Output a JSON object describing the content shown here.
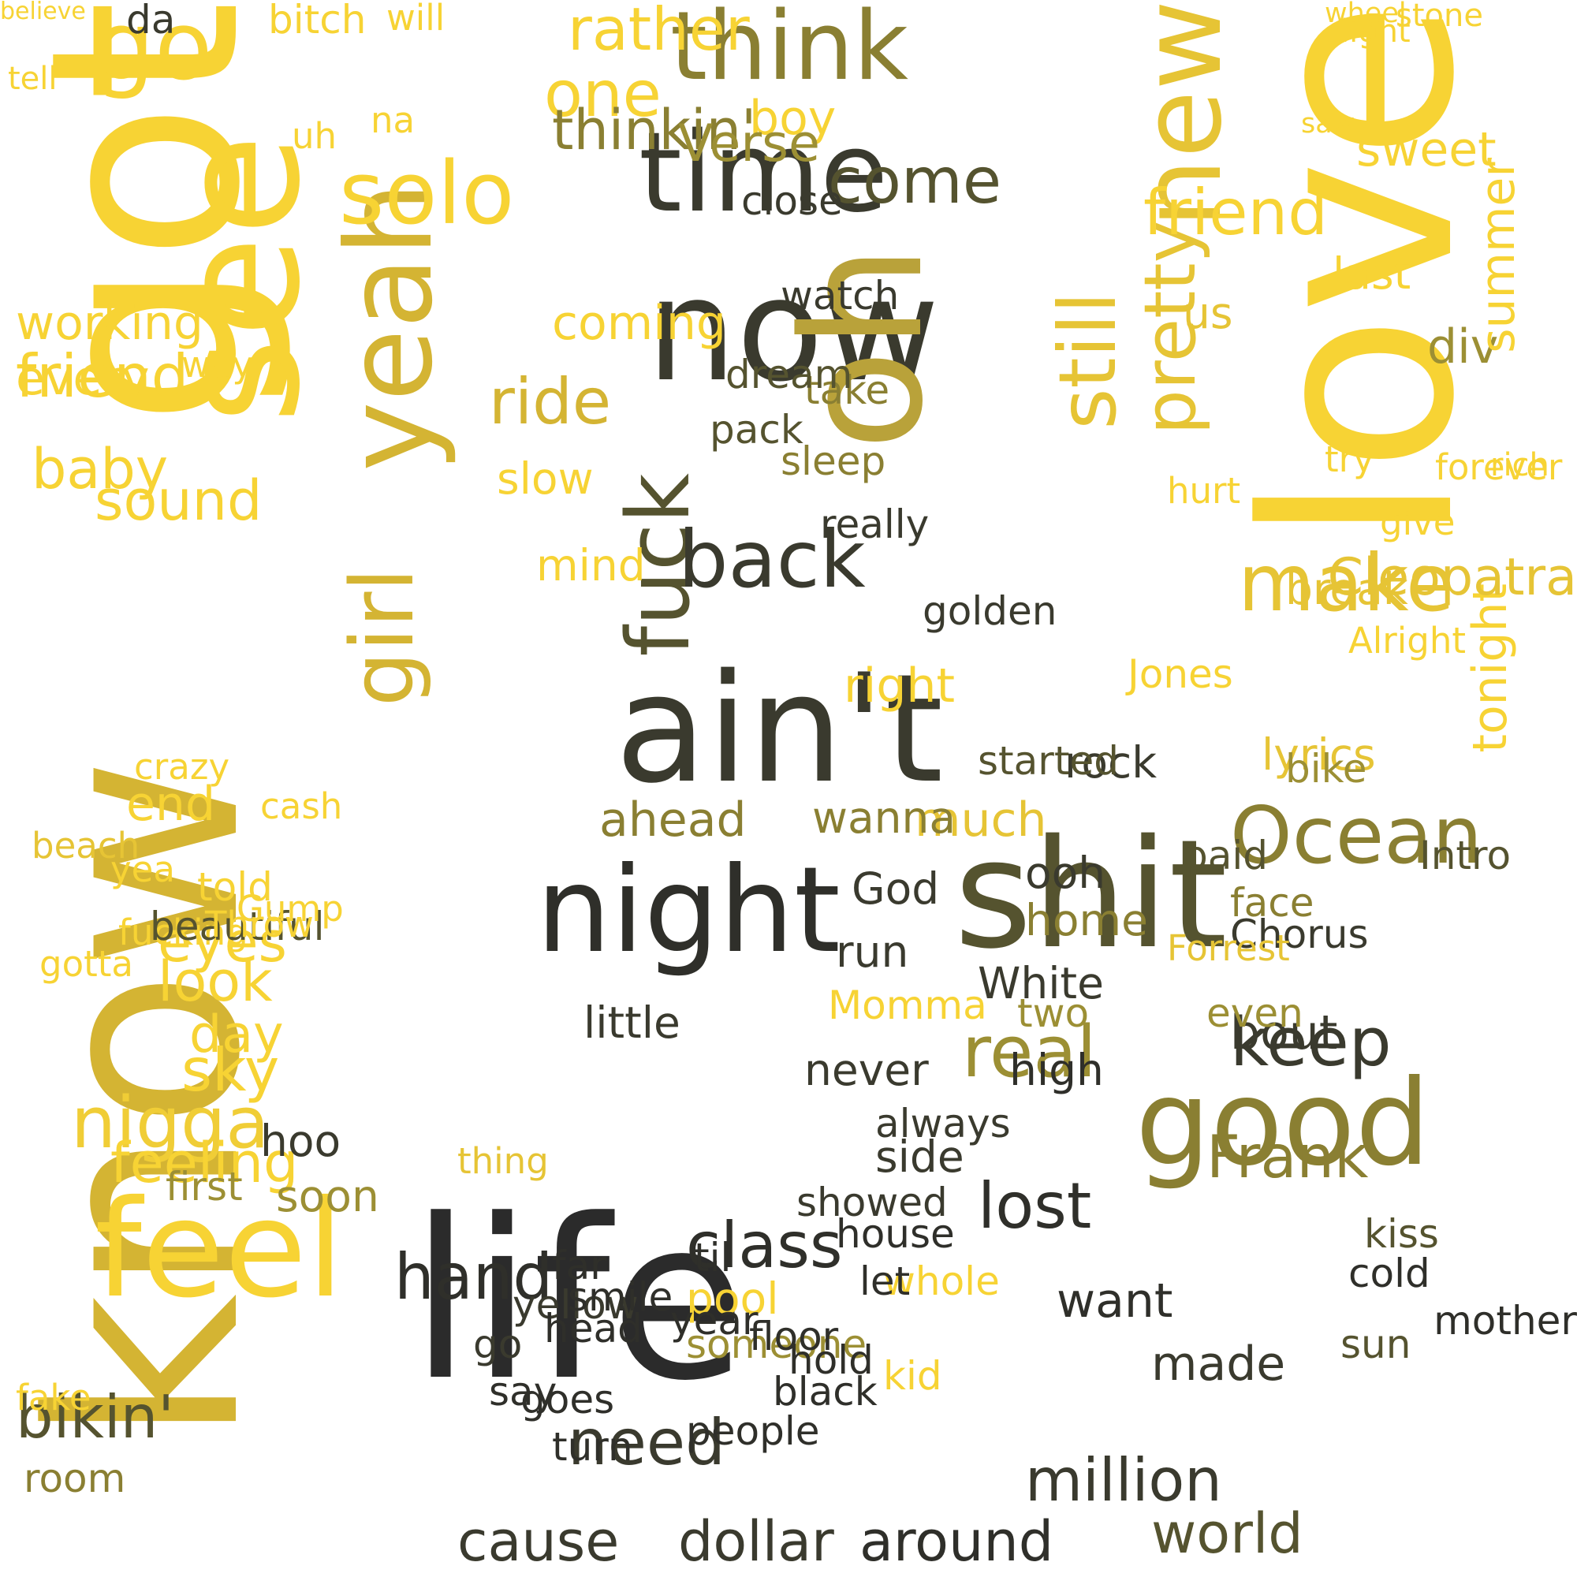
{
  "palette": {
    "yellow": "#f7d334",
    "gold": "#c9b13b",
    "olive": "#8a7f32",
    "dark_olive": "#3f3d2a",
    "near_black": "#2c2c2c"
  },
  "words": [
    {
      "text": "know",
      "color": "#d4b433"
    },
    {
      "text": "got",
      "color": "#f7d334"
    },
    {
      "text": "love",
      "color": "#f7d334"
    },
    {
      "text": "life",
      "color": "#2b2b2b"
    },
    {
      "text": "ain't",
      "color": "#3a3a2e"
    },
    {
      "text": "shit",
      "color": "#55532f"
    },
    {
      "text": "see",
      "color": "#f7d334"
    },
    {
      "text": "now",
      "color": "#3a3a2e"
    },
    {
      "text": "oh",
      "color": "#b9a23a"
    },
    {
      "text": "time",
      "color": "#3a3a2e"
    },
    {
      "text": "night",
      "color": "#2f2f2a"
    },
    {
      "text": "good",
      "color": "#8a7f32"
    },
    {
      "text": "yeah",
      "color": "#d4b433"
    },
    {
      "text": "feel",
      "color": "#f7d334"
    },
    {
      "text": "think",
      "color": "#8a7f32"
    },
    {
      "text": "new",
      "color": "#e6c435"
    },
    {
      "text": "go",
      "color": "#f7d334"
    },
    {
      "text": "fuck",
      "color": "#55532f"
    },
    {
      "text": "girl",
      "color": "#d4b433"
    },
    {
      "text": "solo",
      "color": "#f7d334"
    },
    {
      "text": "nigga",
      "color": "#f0cd36"
    },
    {
      "text": "make",
      "color": "#e6c435"
    },
    {
      "text": "Ocean",
      "color": "#8a7f32"
    },
    {
      "text": "still",
      "color": "#e6c435"
    },
    {
      "text": "pretty",
      "color": "#e6c435"
    },
    {
      "text": "one",
      "color": "#f7d334"
    },
    {
      "text": "back",
      "color": "#3a3a2e"
    },
    {
      "text": "come",
      "color": "#55532f"
    },
    {
      "text": "keep",
      "color": "#3a3a2e"
    },
    {
      "text": "real",
      "color": "#9c8f34"
    },
    {
      "text": "Frank",
      "color": "#8a7f32"
    },
    {
      "text": "need",
      "color": "#3a3a2e"
    },
    {
      "text": "hand",
      "color": "#2f2f2a"
    },
    {
      "text": "class",
      "color": "#2f2f2a"
    },
    {
      "text": "lost",
      "color": "#2f2f2a"
    },
    {
      "text": "cause",
      "color": "#3a3a2e"
    },
    {
      "text": "dollar",
      "color": "#3a3a2e"
    },
    {
      "text": "around",
      "color": "#2f2f2a"
    },
    {
      "text": "million",
      "color": "#3a3a2e"
    },
    {
      "text": "world",
      "color": "#55532f"
    },
    {
      "text": "bikin'",
      "color": "#55532f"
    },
    {
      "text": "feeling",
      "color": "#f7d334"
    },
    {
      "text": "friend",
      "color": "#f7d334"
    },
    {
      "text": "baby",
      "color": "#f7d334"
    },
    {
      "text": "working",
      "color": "#f7d334"
    },
    {
      "text": "every",
      "color": "#f7d334"
    },
    {
      "text": "sound",
      "color": "#f7d334"
    },
    {
      "text": "sky",
      "color": "#f7d334"
    },
    {
      "text": "look",
      "color": "#f7d334"
    },
    {
      "text": "day",
      "color": "#f7d334"
    },
    {
      "text": "eyes",
      "color": "#f7d334"
    },
    {
      "text": "end",
      "color": "#f7d334"
    },
    {
      "text": "ride",
      "color": "#d4b433"
    },
    {
      "text": "rather",
      "color": "#f7d334"
    },
    {
      "text": "thinkin'",
      "color": "#8a7f32"
    },
    {
      "text": "boy",
      "color": "#f7d334"
    },
    {
      "text": "Verse",
      "color": "#9c8f34"
    },
    {
      "text": "div",
      "color": "#9c8f34"
    },
    {
      "text": "last",
      "color": "#f7d334"
    },
    {
      "text": "sweet",
      "color": "#f7d334"
    },
    {
      "text": "summer",
      "color": "#f7d334"
    },
    {
      "text": "tonight",
      "color": "#f7d334"
    },
    {
      "text": "Cleopatra",
      "color": "#e6c435"
    },
    {
      "text": "lyrics",
      "color": "#e6c435"
    },
    {
      "text": "break",
      "color": "#e6c435"
    },
    {
      "text": "right",
      "color": "#f7d334"
    },
    {
      "text": "much",
      "color": "#e6c435"
    },
    {
      "text": "wanna",
      "color": "#8a7f32"
    },
    {
      "text": "ahead",
      "color": "#8a7f32"
    },
    {
      "text": "God",
      "color": "#3a3a2e"
    },
    {
      "text": "rock",
      "color": "#3a3a2e"
    },
    {
      "text": "bout",
      "color": "#3a3a2e"
    },
    {
      "text": "home",
      "color": "#8a7f32"
    },
    {
      "text": "White",
      "color": "#3a3a2e"
    },
    {
      "text": "ooh",
      "color": "#3a3a2e"
    },
    {
      "text": "little",
      "color": "#3a3a2e"
    },
    {
      "text": "never",
      "color": "#3a3a2e"
    },
    {
      "text": "side",
      "color": "#3a3a2e"
    },
    {
      "text": "run",
      "color": "#3a3a2e"
    },
    {
      "text": "high",
      "color": "#2f2f2a"
    },
    {
      "text": "want",
      "color": "#2f2f2a"
    },
    {
      "text": "made",
      "color": "#3a3a2e"
    },
    {
      "text": "hoo",
      "color": "#3a3a2e"
    },
    {
      "text": "soon",
      "color": "#9c8f34"
    },
    {
      "text": "room",
      "color": "#8a7f32"
    },
    {
      "text": "first",
      "color": "#9c8f34"
    },
    {
      "text": "fucking",
      "color": "#f7d334"
    },
    {
      "text": "yea",
      "color": "#f7d334"
    },
    {
      "text": "pool",
      "color": "#f7d334"
    },
    {
      "text": "kid",
      "color": "#f7d334"
    },
    {
      "text": "whole",
      "color": "#f7d334"
    },
    {
      "text": "Momma",
      "color": "#f7d334"
    },
    {
      "text": "take",
      "color": "#8a7f32"
    },
    {
      "text": "sleep",
      "color": "#8a7f32"
    },
    {
      "text": "dream",
      "color": "#55532f"
    },
    {
      "text": "pack",
      "color": "#55532f"
    },
    {
      "text": "watch",
      "color": "#3a3a2e"
    },
    {
      "text": "close",
      "color": "#3a3a2e"
    },
    {
      "text": "really",
      "color": "#3a3a2e"
    },
    {
      "text": "golden",
      "color": "#3a3a2e"
    },
    {
      "text": "started",
      "color": "#55532f"
    },
    {
      "text": "two",
      "color": "#9c8f34"
    },
    {
      "text": "face",
      "color": "#8a7f32"
    },
    {
      "text": "even",
      "color": "#9c8f34"
    },
    {
      "text": "Chorus",
      "color": "#3a3a2e"
    },
    {
      "text": "someone",
      "color": "#9c8f34"
    },
    {
      "text": "showed",
      "color": "#3a3a2e"
    },
    {
      "text": "always",
      "color": "#3a3a2e"
    },
    {
      "text": "yellow",
      "color": "#3a3a2e"
    },
    {
      "text": "go",
      "color": "#3a3a2e"
    },
    {
      "text": "far",
      "color": "#2f2f2a"
    },
    {
      "text": "say",
      "color": "#2f2f2a"
    },
    {
      "text": "let",
      "color": "#2f2f2a"
    },
    {
      "text": "black",
      "color": "#2f2f2a"
    },
    {
      "text": "til",
      "color": "#2f2f2a"
    },
    {
      "text": "house",
      "color": "#2f2f2a"
    },
    {
      "text": "head",
      "color": "#2f2f2a"
    },
    {
      "text": "turn",
      "color": "#2f2f2a"
    },
    {
      "text": "hold",
      "color": "#2f2f2a"
    },
    {
      "text": "people",
      "color": "#2f2f2a"
    },
    {
      "text": "floor",
      "color": "#2f2f2a"
    },
    {
      "text": "year",
      "color": "#2f2f2a"
    },
    {
      "text": "smile",
      "color": "#2f2f2a"
    },
    {
      "text": "goes",
      "color": "#2f2f2a"
    },
    {
      "text": "cold",
      "color": "#2f2f2a"
    },
    {
      "text": "mother",
      "color": "#2f2f2a"
    },
    {
      "text": "kiss",
      "color": "#55532f"
    },
    {
      "text": "sun",
      "color": "#55532f"
    },
    {
      "text": "Intro",
      "color": "#55532f"
    },
    {
      "text": "paid",
      "color": "#55532f"
    },
    {
      "text": "bike",
      "color": "#9c8f34"
    },
    {
      "text": "beautiful",
      "color": "#55532f"
    },
    {
      "text": "beach",
      "color": "#e6c435"
    },
    {
      "text": "gotta",
      "color": "#f7d334"
    },
    {
      "text": "fake",
      "color": "#f7d334"
    },
    {
      "text": "cash",
      "color": "#f7d334"
    },
    {
      "text": "friend",
      "color": "#f7d334"
    },
    {
      "text": "us",
      "color": "#e6c435"
    },
    {
      "text": "thing",
      "color": "#e6c435"
    },
    {
      "text": "crazy",
      "color": "#f7d334"
    },
    {
      "text": "slow",
      "color": "#f7d334"
    },
    {
      "text": "mind",
      "color": "#f7d334"
    },
    {
      "text": "coming",
      "color": "#f7d334"
    },
    {
      "text": "da",
      "color": "#3a3a2e"
    },
    {
      "text": "bitch",
      "color": "#f7d334"
    },
    {
      "text": "will",
      "color": "#f7d334"
    },
    {
      "text": "na",
      "color": "#f7d334"
    },
    {
      "text": "way",
      "color": "#f7d334"
    },
    {
      "text": "uh",
      "color": "#f7d334"
    },
    {
      "text": "tell",
      "color": "#f7d334"
    },
    {
      "text": "light",
      "color": "#f7d334"
    },
    {
      "text": "stone",
      "color": "#f7d334"
    },
    {
      "text": "wheel",
      "color": "#f7d334"
    },
    {
      "text": "saw",
      "color": "#f7d334"
    },
    {
      "text": "told",
      "color": "#f7d334"
    },
    {
      "text": "Throw",
      "color": "#f7d334"
    },
    {
      "text": "Gump",
      "color": "#f7d334"
    },
    {
      "text": "Jones",
      "color": "#f7d334"
    },
    {
      "text": "Forrest",
      "color": "#e6c435"
    },
    {
      "text": "hurt",
      "color": "#f7d334"
    },
    {
      "text": "Alright",
      "color": "#f7d334"
    },
    {
      "text": "forever",
      "color": "#f7d334"
    },
    {
      "text": "try",
      "color": "#f7d334"
    },
    {
      "text": "give",
      "color": "#f7d334"
    },
    {
      "text": "rich",
      "color": "#f7d334"
    },
    {
      "text": "believe",
      "color": "#f7d334"
    }
  ]
}
